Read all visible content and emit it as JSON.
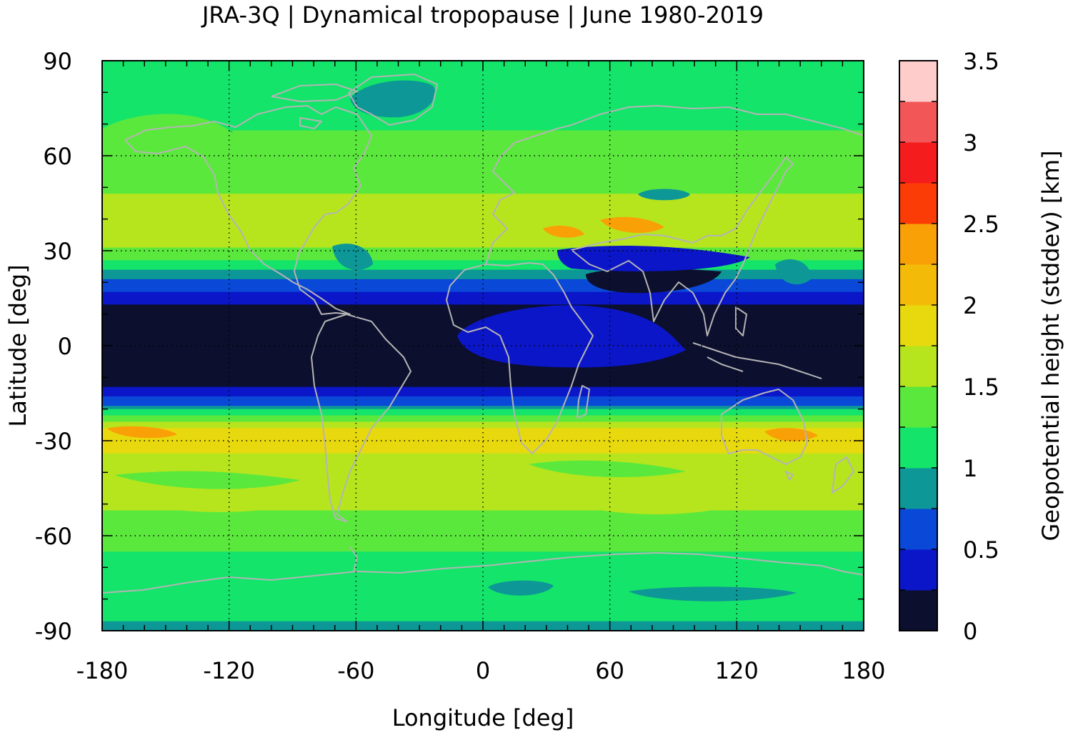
{
  "title": "JRA-3Q | Dynamical tropopause | June 1980-2019",
  "chart_data": {
    "type": "heatmap",
    "title": "JRA-3Q | Dynamical tropopause | June 1980-2019",
    "xlabel": "Longitude [deg]",
    "ylabel": "Latitude [deg]",
    "xlim": [
      -180,
      180
    ],
    "ylim": [
      -90,
      90
    ],
    "x_ticks": [
      -180,
      -120,
      -60,
      0,
      60,
      120,
      180
    ],
    "y_ticks": [
      90,
      60,
      30,
      0,
      -30,
      -60,
      -90
    ],
    "x_tick_labels": [
      "-180",
      "-120",
      "-60",
      "0",
      "60",
      "120",
      "180"
    ],
    "y_tick_labels": [
      "90",
      "60",
      "30",
      "0",
      "-30",
      "-60",
      "-90"
    ],
    "grid": true,
    "coastlines": true,
    "coastline_color": "#b4b4b4",
    "colorbar": {
      "label": "Geopotential height (stddev) [km]",
      "min": 0,
      "max": 3.5,
      "step": 0.25,
      "tick_values": [
        0,
        0.5,
        1,
        1.5,
        2,
        2.5,
        3,
        3.5
      ],
      "tick_labels": [
        "0",
        "0.5",
        "1",
        "1.5",
        "2",
        "2.5",
        "3",
        "3.5"
      ],
      "colors": [
        "#0c0f2e",
        "#0b16c8",
        "#0a48d8",
        "#0d9797",
        "#14e46a",
        "#5be83c",
        "#b6e51e",
        "#e8d90e",
        "#f3bb08",
        "#f9a006",
        "#fc3c06",
        "#f41c1c",
        "#f25656",
        "#ffcccc"
      ]
    },
    "zonal_mean_profile": {
      "lat": [
        90,
        75,
        60,
        45,
        35,
        25,
        18,
        12,
        5,
        -5,
        -12,
        -18,
        -22,
        -27,
        -32,
        -40,
        -50,
        -60,
        -70,
        -80,
        -90
      ],
      "value": [
        1.1,
        1.2,
        1.3,
        1.55,
        1.75,
        1.1,
        0.55,
        0.2,
        0.1,
        0.1,
        0.2,
        0.6,
        1.3,
        1.9,
        1.8,
        1.6,
        1.55,
        1.3,
        1.2,
        1.1,
        0.95
      ]
    }
  }
}
